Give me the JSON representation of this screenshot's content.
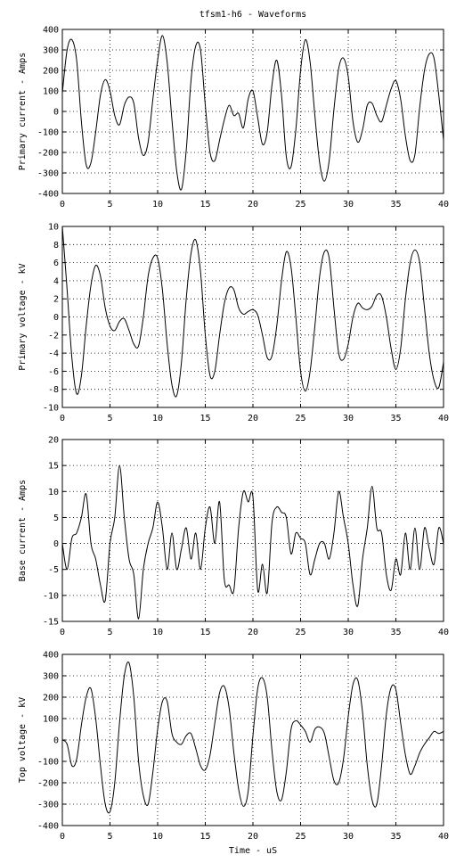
{
  "figure": {
    "title": "tfsm1-h6 - Waveforms"
  },
  "chart_data": [
    {
      "type": "line",
      "title": "",
      "xlabel": "",
      "ylabel": "Primary current - Amps",
      "xlim": [
        0,
        40
      ],
      "ylim": [
        -400,
        400
      ],
      "xticks": [
        0,
        5,
        10,
        15,
        20,
        25,
        30,
        35,
        40
      ],
      "yticks": [
        -400,
        -300,
        -200,
        -100,
        0,
        100,
        200,
        300,
        400
      ],
      "grid": true,
      "legend": "none",
      "series": [
        {
          "color": "#000000",
          "x": [
            0,
            0.5,
            1.0,
            1.5,
            2.0,
            2.5,
            3.0,
            3.5,
            4.0,
            4.5,
            5.0,
            5.5,
            6.0,
            6.5,
            7.0,
            7.5,
            8.0,
            8.5,
            9.0,
            9.5,
            10.0,
            10.5,
            11.0,
            11.5,
            12.0,
            12.5,
            13.0,
            13.5,
            14.0,
            14.5,
            15.0,
            15.5,
            16.0,
            16.5,
            17.0,
            17.5,
            18.0,
            18.5,
            19.0,
            19.5,
            20.0,
            20.5,
            21.0,
            21.5,
            22.0,
            22.5,
            23.0,
            23.5,
            24.0,
            24.5,
            25.0,
            25.5,
            26.0,
            26.5,
            27.0,
            27.5,
            28.0,
            28.5,
            29.0,
            29.5,
            30.0,
            30.5,
            31.0,
            31.5,
            32.0,
            32.5,
            33.0,
            33.5,
            34.0,
            34.5,
            35.0,
            35.5,
            36.0,
            36.5,
            37.0,
            37.5,
            38.0,
            38.5,
            39.0,
            39.5,
            40.0
          ],
          "y": [
            90,
            300,
            350,
            250,
            -50,
            -260,
            -250,
            -100,
            80,
            155,
            100,
            -20,
            -65,
            30,
            70,
            40,
            -130,
            -215,
            -150,
            60,
            250,
            370,
            240,
            -40,
            -290,
            -380,
            -190,
            150,
            320,
            300,
            30,
            -200,
            -240,
            -140,
            -40,
            30,
            -20,
            -10,
            -80,
            60,
            100,
            -30,
            -160,
            -100,
            130,
            250,
            80,
            -220,
            -270,
            -90,
            200,
            350,
            240,
            -20,
            -250,
            -340,
            -240,
            10,
            210,
            260,
            170,
            -50,
            -150,
            -90,
            30,
            40,
            -20,
            -50,
            30,
            110,
            150,
            60,
            -120,
            -240,
            -210,
            20,
            200,
            280,
            260,
            80,
            -140
          ]
        }
      ]
    },
    {
      "type": "line",
      "title": "",
      "xlabel": "",
      "ylabel": "Primary voltage - kV",
      "xlim": [
        0,
        40
      ],
      "ylim": [
        -10,
        10
      ],
      "xticks": [
        0,
        5,
        10,
        15,
        20,
        25,
        30,
        35,
        40
      ],
      "yticks": [
        -10,
        -8,
        -6,
        -4,
        -2,
        0,
        2,
        4,
        6,
        8,
        10
      ],
      "grid": true,
      "legend": "none",
      "series": [
        {
          "color": "#000000",
          "x": [
            0,
            0.5,
            1.0,
            1.5,
            2.0,
            2.5,
            3.0,
            3.5,
            4.0,
            4.5,
            5.0,
            5.5,
            6.0,
            6.5,
            7.0,
            7.5,
            8.0,
            8.5,
            9.0,
            9.5,
            10.0,
            10.5,
            11.0,
            11.5,
            12.0,
            12.5,
            13.0,
            13.5,
            14.0,
            14.5,
            15.0,
            15.5,
            16.0,
            16.5,
            17.0,
            17.5,
            18.0,
            18.5,
            19.0,
            19.5,
            20.0,
            20.5,
            21.0,
            21.5,
            22.0,
            22.5,
            23.0,
            23.5,
            24.0,
            24.5,
            25.0,
            25.5,
            26.0,
            26.5,
            27.0,
            27.5,
            28.0,
            28.5,
            29.0,
            29.5,
            30.0,
            30.5,
            31.0,
            31.5,
            32.0,
            32.5,
            33.0,
            33.5,
            34.0,
            34.5,
            35.0,
            35.5,
            36.0,
            36.5,
            37.0,
            37.5,
            38.0,
            38.5,
            39.0,
            39.5,
            40.0
          ],
          "y": [
            10,
            3,
            -4.5,
            -8.5,
            -6.5,
            -1,
            3.5,
            5.7,
            4.5,
            1,
            -1,
            -1.5,
            -0.5,
            -0.2,
            -1.5,
            -3,
            -3.2,
            0,
            4.5,
            6.5,
            6.5,
            3,
            -3,
            -7.5,
            -8.7,
            -5,
            2,
            7,
            8.5,
            5,
            -2,
            -6.5,
            -6,
            -2,
            1.5,
            3.2,
            3,
            1,
            0.3,
            0.6,
            0.8,
            0.2,
            -2,
            -4.5,
            -4.3,
            -1,
            4,
            7.2,
            5.5,
            0,
            -6,
            -8.2,
            -6,
            -1,
            4.5,
            7.2,
            6.5,
            1,
            -4,
            -4.7,
            -3,
            0,
            1.5,
            1,
            0.8,
            1.2,
            2.4,
            2.3,
            0,
            -3.5,
            -5.8,
            -3.5,
            2,
            6,
            7.4,
            6,
            1,
            -4,
            -7,
            -7.8,
            -5
          ]
        }
      ]
    },
    {
      "type": "line",
      "title": "",
      "xlabel": "",
      "ylabel": "Base current - Amps",
      "xlim": [
        0,
        40
      ],
      "ylim": [
        -15,
        20
      ],
      "xticks": [
        0,
        5,
        10,
        15,
        20,
        25,
        30,
        35,
        40
      ],
      "yticks": [
        -15,
        -10,
        -5,
        0,
        5,
        10,
        15,
        20
      ],
      "grid": true,
      "legend": "none",
      "series": [
        {
          "color": "#000000",
          "x": [
            0,
            0.5,
            1.0,
            1.5,
            2.0,
            2.5,
            3.0,
            3.5,
            4.0,
            4.5,
            5.0,
            5.5,
            6.0,
            6.5,
            7.0,
            7.5,
            8.0,
            8.5,
            9.0,
            9.5,
            10.0,
            10.5,
            11.0,
            11.5,
            12.0,
            12.5,
            13.0,
            13.5,
            14.0,
            14.5,
            15.0,
            15.5,
            16.0,
            16.5,
            17.0,
            17.5,
            18.0,
            18.5,
            19.0,
            19.5,
            20.0,
            20.5,
            21.0,
            21.5,
            22.0,
            22.5,
            23.0,
            23.5,
            24.0,
            24.5,
            25.0,
            25.5,
            26.0,
            26.5,
            27.0,
            27.5,
            28.0,
            28.5,
            29.0,
            29.5,
            30.0,
            30.5,
            31.0,
            31.5,
            32.0,
            32.5,
            33.0,
            33.5,
            34.0,
            34.5,
            35.0,
            35.5,
            36.0,
            36.5,
            37.0,
            37.5,
            38.0,
            38.5,
            39.0,
            39.5,
            40.0
          ],
          "y": [
            0,
            -5,
            1,
            2,
            5,
            9.5,
            0,
            -3,
            -8,
            -11,
            0,
            5,
            15,
            5,
            -3,
            -6,
            -14.5,
            -5,
            0,
            3,
            8,
            3,
            -5,
            2,
            -5,
            -1,
            3,
            -3,
            2,
            -5,
            3,
            7,
            0,
            8,
            -7,
            -8,
            -9,
            3,
            10,
            8,
            9,
            -9,
            -4,
            -9.5,
            4,
            7,
            6,
            5,
            -2,
            2,
            1,
            0,
            -6,
            -3,
            0,
            0,
            -3,
            2,
            10,
            5,
            0,
            -8,
            -12,
            -3,
            3,
            11,
            3,
            2,
            -6,
            -9,
            -3,
            -6,
            2,
            -5,
            3,
            -5,
            3,
            -1,
            -4,
            3,
            0
          ]
        }
      ]
    },
    {
      "type": "line",
      "title": "",
      "xlabel": "Time - uS",
      "ylabel": "Top voltage - kV",
      "xlim": [
        0,
        40
      ],
      "ylim": [
        -400,
        400
      ],
      "xticks": [
        0,
        5,
        10,
        15,
        20,
        25,
        30,
        35,
        40
      ],
      "yticks": [
        -400,
        -300,
        -200,
        -100,
        0,
        100,
        200,
        300,
        400
      ],
      "grid": true,
      "legend": "none",
      "series": [
        {
          "color": "#000000",
          "x": [
            0,
            0.5,
            1.0,
            1.5,
            2.0,
            2.5,
            3.0,
            3.5,
            4.0,
            4.5,
            5.0,
            5.5,
            6.0,
            6.5,
            7.0,
            7.5,
            8.0,
            8.5,
            9.0,
            9.5,
            10.0,
            10.5,
            11.0,
            11.5,
            12.0,
            12.5,
            13.0,
            13.5,
            14.0,
            14.5,
            15.0,
            15.5,
            16.0,
            16.5,
            17.0,
            17.5,
            18.0,
            18.5,
            19.0,
            19.5,
            20.0,
            20.5,
            21.0,
            21.5,
            22.0,
            22.5,
            23.0,
            23.5,
            24.0,
            24.5,
            25.0,
            25.5,
            26.0,
            26.5,
            27.0,
            27.5,
            28.0,
            28.5,
            29.0,
            29.5,
            30.0,
            30.5,
            31.0,
            31.5,
            32.0,
            32.5,
            33.0,
            33.5,
            34.0,
            34.5,
            35.0,
            35.5,
            36.0,
            36.5,
            37.0,
            37.5,
            38.0,
            38.5,
            39.0,
            39.5,
            40.0
          ],
          "y": [
            0,
            -20,
            -120,
            -90,
            70,
            200,
            240,
            100,
            -120,
            -300,
            -335,
            -200,
            80,
            300,
            360,
            200,
            -100,
            -260,
            -300,
            -150,
            50,
            180,
            180,
            30,
            -10,
            -20,
            20,
            30,
            -40,
            -120,
            -140,
            -70,
            80,
            220,
            250,
            150,
            -60,
            -230,
            -310,
            -240,
            20,
            240,
            290,
            200,
            -50,
            -240,
            -280,
            -150,
            50,
            90,
            70,
            40,
            -10,
            50,
            60,
            30,
            -80,
            -190,
            -200,
            -90,
            110,
            260,
            280,
            130,
            -120,
            -280,
            -300,
            -120,
            120,
            245,
            235,
            80,
            -70,
            -160,
            -120,
            -60,
            -20,
            10,
            40,
            30,
            40
          ]
        }
      ]
    }
  ]
}
